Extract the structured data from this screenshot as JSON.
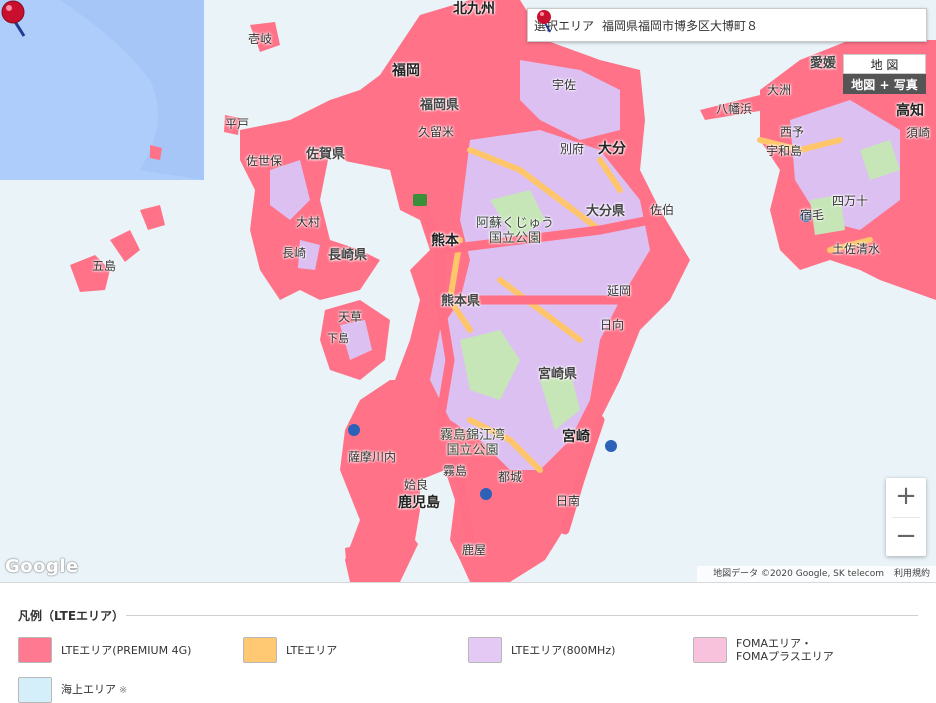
{
  "selected_area": {
    "label": "選択エリア",
    "value": "福岡県福岡市博多区大博町８"
  },
  "map_type": {
    "map_label": "地 図",
    "satellite_label": "地図 + 写真"
  },
  "zoom": {
    "in_label": "+",
    "out_label": "−"
  },
  "attribution": {
    "google": "Google",
    "data": "地図データ ©2020 Google, SK telecom",
    "terms": "利用規約"
  },
  "places": {
    "kitakyushu": "北九州",
    "iki": "壱岐",
    "fukuoka": "福岡",
    "fukuoka_pref": "福岡県",
    "munakata": "宇佐",
    "hirado": "平戸",
    "kurume": "久留米",
    "saga_pref": "佐賀県",
    "sasebo": "佐世保",
    "beppu": "別府",
    "oita": "大分",
    "oita_pref": "大分県",
    "saiki": "佐伯",
    "omura": "大村",
    "nagasaki": "長崎",
    "nagasaki_pref": "長崎県",
    "goto": "五島",
    "kumamoto": "熊本",
    "aso_park": "阿蘇くじゅう\n国立公園",
    "kumamoto_pref": "熊本県",
    "nobeoka": "延岡",
    "amakusa": "天草",
    "shimoshima": "下島",
    "hyuga": "日向",
    "miyazaki_pref": "宮崎県",
    "kirishima_park": "霧島錦江湾\n国立公園",
    "miyazaki": "宮崎",
    "satsumasendai": "薩摩川内",
    "kirishima": "霧島",
    "miyakonojo": "都城",
    "aira": "姶良",
    "kagoshima": "鹿児島",
    "nichinan": "日南",
    "kanoya": "鹿屋",
    "matsuyama": "愛媛",
    "ozu": "大洲",
    "yawatahama": "八幡浜",
    "kochi": "高知",
    "susaki": "須崎",
    "seiyo": "西予",
    "uwajima": "宇和島",
    "shimanto": "四万十",
    "sukumo": "宿毛",
    "tosashimizu": "土佐清水"
  },
  "legend": {
    "title": "凡例（LTEエリア）",
    "items": [
      {
        "label": "LTEエリア(PREMIUM 4G)",
        "color": "#ff7a90"
      },
      {
        "label": "LTEエリア",
        "color": "#ffc873"
      },
      {
        "label": "LTEエリア(800MHz)",
        "color": "#e5c9f5"
      },
      {
        "label": "FOMAエリア・\nFOMAプラスエリア",
        "color": "#f8c2dc"
      },
      {
        "label": "海上エリア",
        "note": "※",
        "color": "#d4eefa"
      }
    ]
  },
  "colors": {
    "sea": "#e9f3f8",
    "premium": "#ff6f86",
    "lte": "#ffc56b",
    "lte800": "#dcc0f2",
    "foma": "#f8c2dc",
    "land": "#ece3cf",
    "green": "#c7e6b8",
    "offshore": "#aecdfa"
  }
}
